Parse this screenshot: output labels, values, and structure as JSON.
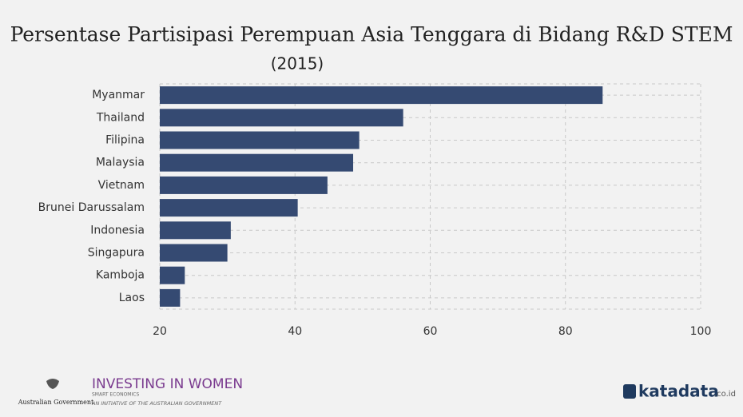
{
  "chart_data": {
    "type": "barh",
    "title": "Persentase Partisipasi Perempuan Asia Tenggara di Bidang R&D STEM",
    "subtitle": "(2015)",
    "categories": [
      "Myanmar",
      "Thailand",
      "Filipina",
      "Malaysia",
      "Vietnam",
      "Brunei Darussalam",
      "Indonesia",
      "Singapura",
      "Kamboja",
      "Laos"
    ],
    "values": [
      85.5,
      56.0,
      49.5,
      48.6,
      44.8,
      40.4,
      30.5,
      30.0,
      23.7,
      23.0
    ],
    "color": "#354a72",
    "xlim": [
      20,
      100
    ],
    "xticks": [
      20,
      40,
      60,
      80,
      100
    ],
    "grid": true
  },
  "footer": {
    "gov": "Australian Government",
    "brand": "INVESTING IN WOMEN",
    "brand_sub": "SMART ECONOMICS",
    "initiative": "AN INITIATIVE OF THE AUSTRALIAN GOVERNMENT",
    "site": "katadata",
    "site_domain": ".co.id"
  }
}
